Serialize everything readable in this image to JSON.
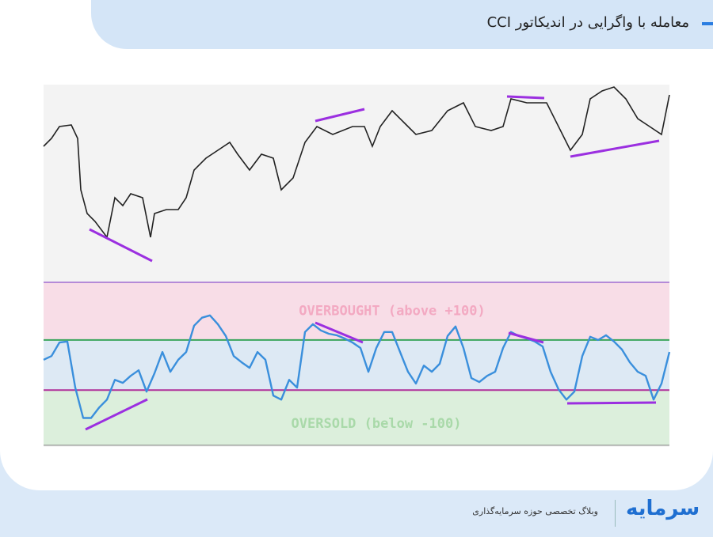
{
  "header": {
    "title": "معامله با واگرایی در اندیکاتور CCI"
  },
  "chart_data": {
    "type": "line",
    "overbought_label": "OVERBOUGHT (above  +100)",
    "oversold_label": "OVERSOLD (below -100)",
    "overbought_level": 100,
    "oversold_level": -100,
    "ylim": [
      -320,
      330
    ],
    "series": [
      {
        "name": "CCI",
        "color": "#3a8fdc",
        "values": [
          21,
          36,
          90,
          94,
          -90,
          -211,
          -211,
          -170,
          -138,
          -59,
          -71,
          -43,
          -21,
          -106,
          -33,
          52,
          -27,
          21,
          52,
          157,
          189,
          198,
          163,
          116,
          36,
          11,
          -11,
          52,
          21,
          -122,
          -138,
          -59,
          -90,
          132,
          163,
          138,
          125,
          119,
          106,
          90,
          68,
          -27,
          68,
          132,
          132,
          52,
          -27,
          -74,
          -2,
          -27,
          5,
          116,
          154,
          68,
          -52,
          -68,
          -43,
          -27,
          68,
          132,
          116,
          106,
          94,
          74,
          -27,
          -97,
          -138,
          -106,
          36,
          113,
          100,
          119,
          94,
          62,
          11,
          -27,
          -43,
          -138,
          -74,
          52
        ]
      }
    ]
  },
  "footer": {
    "tagline": "وبلاگ تخصصی حوزه سرمایه‌گذاری",
    "logo": "سرمایه"
  }
}
